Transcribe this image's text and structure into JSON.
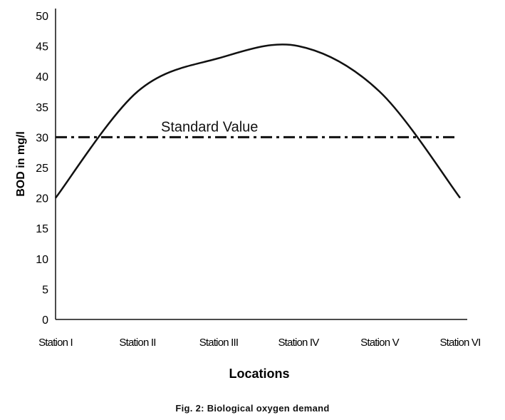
{
  "chart_data": {
    "type": "line",
    "categories": [
      "Station I",
      "Station II",
      "Station III",
      "Station IV",
      "Station V",
      "Station VI"
    ],
    "series": [
      {
        "values": [
          20,
          37.5,
          43,
          45,
          37.5,
          20
        ],
        "color": "#111111"
      }
    ],
    "reference_line": {
      "value": 30,
      "label": "Standard Value",
      "style": "dash-dot"
    },
    "xlabel": "Locations",
    "ylabel": "BOD in mg/l",
    "ylim": [
      0,
      50
    ],
    "yticks": [
      0,
      5,
      10,
      15,
      20,
      25,
      30,
      35,
      40,
      45,
      50
    ],
    "grid": false
  },
  "caption": "Fig. 2: Biological oxygen demand"
}
